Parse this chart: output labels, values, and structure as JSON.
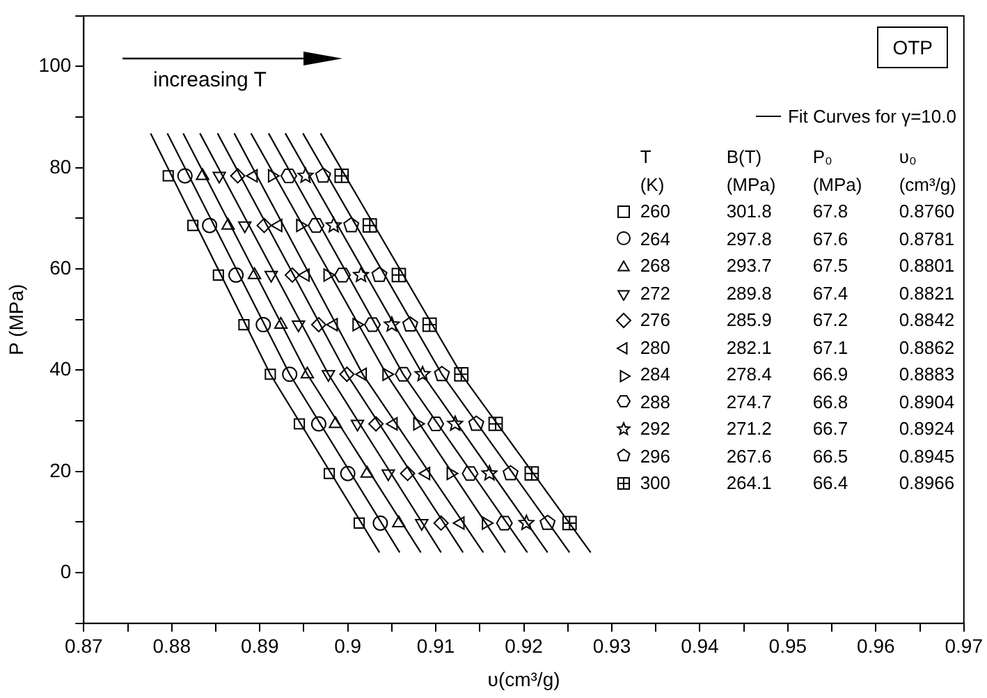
{
  "chart_data": {
    "type": "scatter",
    "xlabel": "υ(cm³/g)",
    "ylabel": "P (MPa)",
    "xlim": [
      0.87,
      0.97
    ],
    "xticks": [
      0.87,
      {
        "value": 0.875,
        "label": null
      },
      0.88,
      {
        "value": 0.885,
        "label": null
      },
      0.89,
      {
        "value": 0.895,
        "label": null
      },
      0.9,
      {
        "value": 0.905,
        "label": null
      },
      0.91,
      {
        "value": 0.915,
        "label": null
      },
      0.92,
      {
        "value": 0.925,
        "label": null
      },
      0.93,
      {
        "value": 0.935,
        "label": null
      },
      0.94,
      {
        "value": 0.945,
        "label": null
      },
      0.95,
      {
        "value": 0.955,
        "label": null
      },
      0.96,
      {
        "value": 0.965,
        "label": null
      },
      0.97
    ],
    "ylim": [
      -10,
      110
    ],
    "yticks": [
      {
        "value": -10,
        "label": null
      },
      0,
      {
        "value": 10,
        "label": null
      },
      20,
      {
        "value": 30,
        "label": null
      },
      40,
      {
        "value": 50,
        "label": null
      },
      60,
      {
        "value": 70,
        "label": null
      },
      80,
      {
        "value": 90,
        "label": null
      },
      100,
      {
        "value": 110,
        "label": null
      }
    ],
    "grid": false,
    "legend": "top right",
    "legend_title": "T\tB(T)\tP₀\tυ₀\n(K)\t(MPa)\t(MPa)\t(cm³/g)",
    "annotations": [
      "increasing T",
      "OTP"
    ],
    "series": [
      {
        "marker": "square",
        "name": "260\t301.8\t67.8\t0.8760",
        "color": "#000000",
        "x": [
          0.8796,
          0.8824,
          0.8853,
          0.8882,
          0.8912,
          0.8945,
          0.8979,
          0.9013
        ],
        "values": [
          78.4,
          68.6,
          58.8,
          49,
          39.2,
          29.4,
          19.6,
          9.8
        ]
      },
      {
        "marker": "circle",
        "name": "264\t297.8\t67.6\t0.8781",
        "color": "#000000",
        "x": [
          0.8815,
          0.8843,
          0.8873,
          0.8904,
          0.8934,
          0.8967,
          0.9,
          0.9037
        ],
        "values": [
          78.4,
          68.6,
          58.8,
          49,
          39.2,
          29.4,
          19.6,
          9.8
        ]
      },
      {
        "marker": "triangle",
        "name": "268\t293.7\t67.5\t0.8801",
        "color": "#000000",
        "x": [
          0.8835,
          0.8864,
          0.8894,
          0.8924,
          0.8954,
          0.8986,
          0.9022,
          0.9058
        ],
        "values": [
          78.4,
          68.6,
          58.8,
          49,
          39.2,
          29.4,
          19.6,
          9.8
        ]
      },
      {
        "marker": "triangle-down",
        "name": "272\t289.8\t67.4\t0.8821",
        "color": "#000000",
        "x": [
          0.8854,
          0.8883,
          0.8913,
          0.8944,
          0.8978,
          0.9011,
          0.9046,
          0.9084
        ],
        "values": [
          78.4,
          68.6,
          58.8,
          49,
          39.2,
          29.4,
          19.6,
          9.8
        ]
      },
      {
        "marker": "diamond",
        "name": "276\t285.9\t67.2\t0.8842",
        "color": "#000000",
        "x": [
          0.8875,
          0.8905,
          0.8937,
          0.8967,
          0.8999,
          0.9032,
          0.9068,
          0.9106
        ],
        "values": [
          78.4,
          68.6,
          58.8,
          49,
          39.2,
          29.4,
          19.6,
          9.8
        ]
      },
      {
        "marker": "triangle-left",
        "name": "280\t282.1\t67.1\t0.8862",
        "color": "#000000",
        "x": [
          0.8893,
          0.8921,
          0.8952,
          0.8984,
          0.9017,
          0.9052,
          0.9089,
          0.9128
        ],
        "values": [
          78.4,
          68.6,
          58.8,
          49,
          39.2,
          29.4,
          19.6,
          9.8
        ]
      },
      {
        "marker": "triangle-right",
        "name": "284\t278.4\t66.9\t0.8883",
        "color": "#000000",
        "x": [
          0.8914,
          0.8946,
          0.8977,
          0.901,
          0.9044,
          0.9079,
          0.9117,
          0.9157
        ],
        "values": [
          78.4,
          68.6,
          58.8,
          49,
          39.2,
          29.4,
          19.6,
          9.8
        ]
      },
      {
        "name": "288\t274.7\t66.8\t0.8904",
        "color": "#000000",
        "x": [
          0.8933,
          0.8964,
          0.8994,
          0.9028,
          0.9063,
          0.91,
          0.9139,
          0.9178
        ],
        "values": [
          78.4,
          68.6,
          58.8,
          49,
          39.2,
          29.4,
          19.6,
          9.8
        ]
      },
      {
        "marker": "star",
        "name": "292\t271.2\t66.7\t0.8924",
        "color": "#000000",
        "x": [
          0.8952,
          0.8984,
          0.9015,
          0.905,
          0.9085,
          0.9122,
          0.9161,
          0.9203
        ],
        "values": [
          78.4,
          68.6,
          58.8,
          49,
          39.2,
          29.4,
          19.6,
          9.8
        ]
      },
      {
        "name": "296\t267.6\t66.5\t0.8945",
        "color": "#000000",
        "x": [
          0.8972,
          0.9004,
          0.9036,
          0.9071,
          0.9107,
          0.9146,
          0.9185,
          0.9227
        ],
        "values": [
          78.4,
          68.6,
          58.8,
          49,
          39.2,
          29.4,
          19.6,
          9.8
        ]
      },
      {
        "name": "300\t264.1\t66.4\t0.8966",
        "color": "#000000",
        "x": [
          0.8993,
          0.9025,
          0.9058,
          0.9093,
          0.9129,
          0.9168,
          0.9209,
          0.9252
        ],
        "values": [
          78.4,
          68.6,
          58.8,
          49,
          39.2,
          29.4,
          19.6,
          9.8
        ]
      },
      {
        "type": "line",
        "marker": "none",
        "line_style": "solid",
        "name": "Fit Curves for γ=10.0",
        "color": "#000000",
        "x": [
          0.8776,
          0.8912,
          0.9036
        ],
        "values": [
          86.8,
          39.2,
          4
        ]
      },
      {
        "type": "line",
        "marker": "none",
        "line_style": "solid",
        "color": "#000000",
        "x": [
          0.8795,
          0.8934,
          0.9059
        ],
        "values": [
          86.8,
          39.2,
          4
        ]
      },
      {
        "type": "line",
        "marker": "none",
        "line_style": "solid",
        "color": "#000000",
        "x": [
          0.8813,
          0.8954,
          0.9083
        ],
        "values": [
          86.8,
          39.2,
          4
        ]
      },
      {
        "type": "line",
        "marker": "none",
        "line_style": "solid",
        "color": "#000000",
        "x": [
          0.8832,
          0.8978,
          0.9106
        ],
        "values": [
          86.8,
          39.2,
          4
        ]
      },
      {
        "type": "line",
        "marker": "none",
        "line_style": "solid",
        "color": "#000000",
        "x": [
          0.8852,
          0.8999,
          0.9131
        ],
        "values": [
          86.8,
          39.2,
          4
        ]
      },
      {
        "type": "line",
        "marker": "none",
        "line_style": "solid",
        "color": "#000000",
        "x": [
          0.8871,
          0.9017,
          0.9154
        ],
        "values": [
          86.8,
          39.2,
          4
        ]
      },
      {
        "type": "line",
        "marker": "none",
        "line_style": "solid",
        "color": "#000000",
        "x": [
          0.889,
          0.9044,
          0.9179
        ],
        "values": [
          86.8,
          39.2,
          4
        ]
      },
      {
        "type": "line",
        "marker": "none",
        "line_style": "solid",
        "color": "#000000",
        "x": [
          0.891,
          0.9063,
          0.9204
        ],
        "values": [
          86.8,
          39.2,
          4
        ]
      },
      {
        "type": "line",
        "marker": "none",
        "line_style": "solid",
        "color": "#000000",
        "x": [
          0.8929,
          0.9085,
          0.9227
        ],
        "values": [
          86.8,
          39.2,
          4
        ]
      },
      {
        "type": "line",
        "marker": "none",
        "line_style": "solid",
        "color": "#000000",
        "x": [
          0.8949,
          0.9107,
          0.9252
        ],
        "values": [
          86.8,
          39.2,
          4
        ]
      },
      {
        "type": "line",
        "marker": "none",
        "line_style": "solid",
        "color": "#000000",
        "x": [
          0.8969,
          0.9129,
          0.9276
        ],
        "values": [
          86.8,
          39.2,
          4
        ]
      }
    ]
  }
}
